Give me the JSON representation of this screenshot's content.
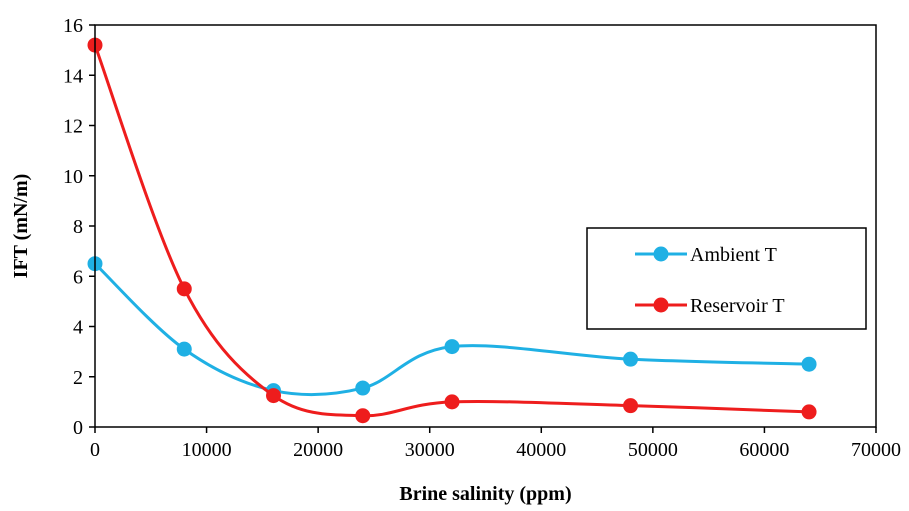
{
  "chart_data": {
    "type": "line",
    "title": "",
    "xlabel": "Brine salinity (ppm)",
    "ylabel": "IFT (mN/m)",
    "xlim": [
      0,
      70000
    ],
    "ylim": [
      0,
      16
    ],
    "x_ticks": [
      0,
      10000,
      20000,
      30000,
      40000,
      50000,
      60000,
      70000
    ],
    "y_ticks": [
      0,
      2,
      4,
      6,
      8,
      10,
      12,
      14,
      16
    ],
    "x_tick_labels": [
      "0",
      "10000",
      "20000",
      "30000",
      "40000",
      "50000",
      "60000",
      "70000"
    ],
    "y_tick_labels": [
      "0",
      "2",
      "4",
      "6",
      "8",
      "10",
      "12",
      "14",
      "16"
    ],
    "grid": false,
    "smooth": true,
    "legend_position": "right",
    "series": [
      {
        "name": "Ambient T",
        "color": "#1FB0E4",
        "x": [
          0,
          8000,
          16000,
          24000,
          32000,
          48000,
          64000
        ],
        "y": [
          6.5,
          3.1,
          1.45,
          1.55,
          3.2,
          2.7,
          2.5
        ]
      },
      {
        "name": "Reservoir T",
        "color": "#EE1D1D",
        "x": [
          0,
          8000,
          16000,
          24000,
          32000,
          48000,
          64000
        ],
        "y": [
          15.2,
          5.5,
          1.25,
          0.45,
          1.0,
          0.85,
          0.6
        ]
      }
    ]
  }
}
